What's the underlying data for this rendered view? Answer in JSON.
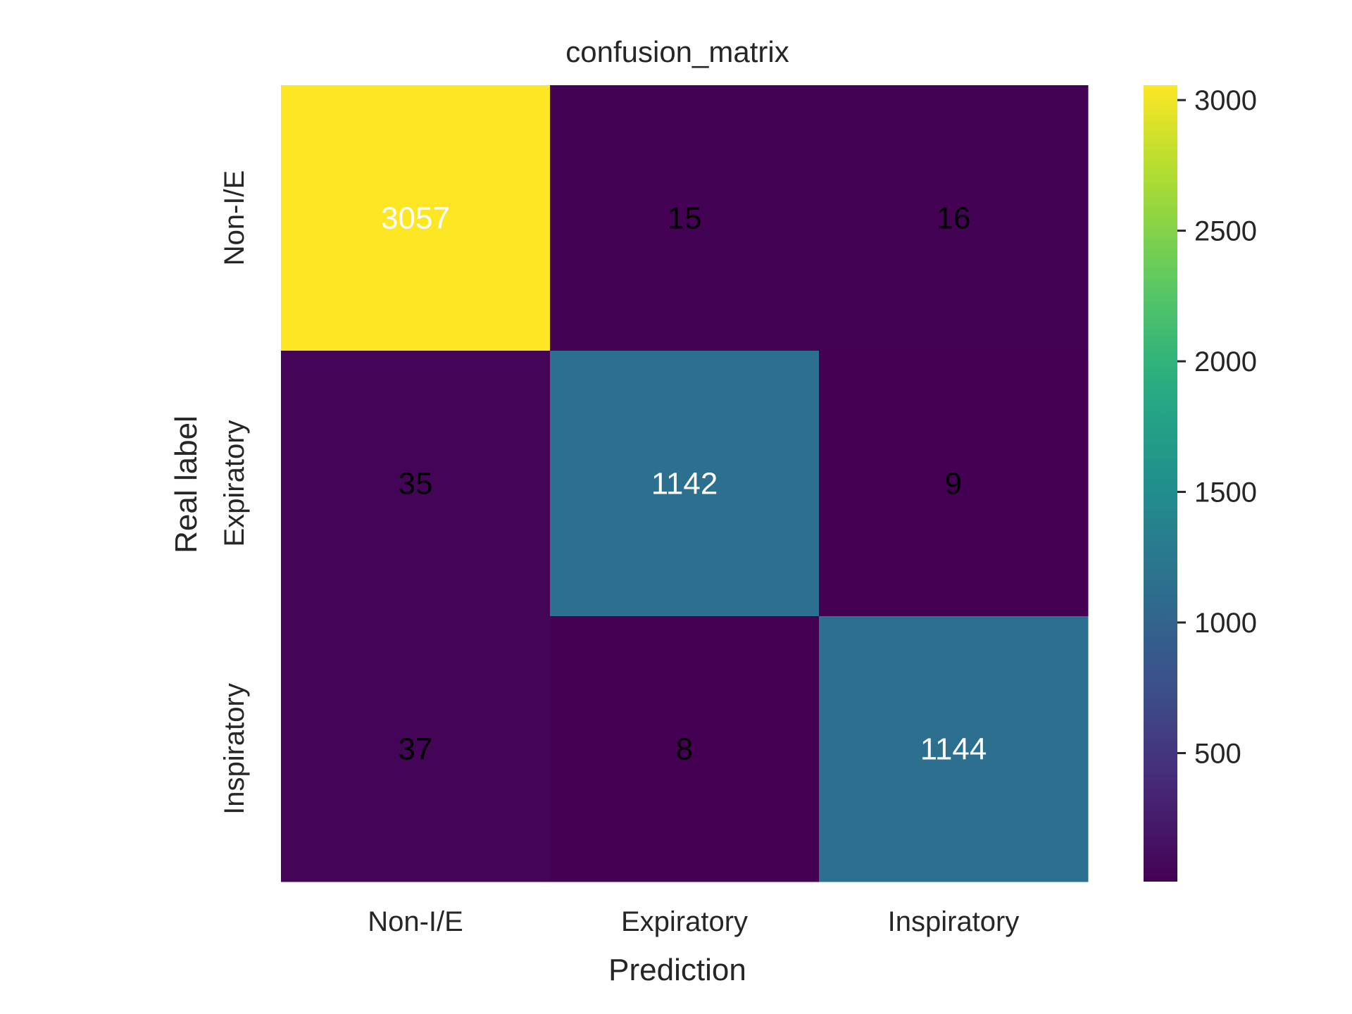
{
  "chart_data": {
    "type": "heatmap",
    "title": "confusion_matrix",
    "xlabel": "Prediction",
    "ylabel": "Real label",
    "x_categories": [
      "Non-I/E",
      "Expiratory",
      "Inspiratory"
    ],
    "y_categories": [
      "Non-I/E",
      "Expiratory",
      "Inspiratory"
    ],
    "values": [
      [
        3057,
        15,
        16
      ],
      [
        35,
        1142,
        9
      ],
      [
        37,
        8,
        1144
      ]
    ],
    "colormap": "viridis",
    "vmin": 8,
    "vmax": 3057,
    "colorbar_ticks": [
      500,
      1000,
      1500,
      2000,
      2500,
      3000
    ],
    "colorbar_tick_labels": [
      "500",
      "1000",
      "1500",
      "2000",
      "2500",
      "3000"
    ],
    "annotation_colors": {
      "dark_cell": "#000000",
      "light_cell": "#ffffff"
    },
    "grid": false
  }
}
